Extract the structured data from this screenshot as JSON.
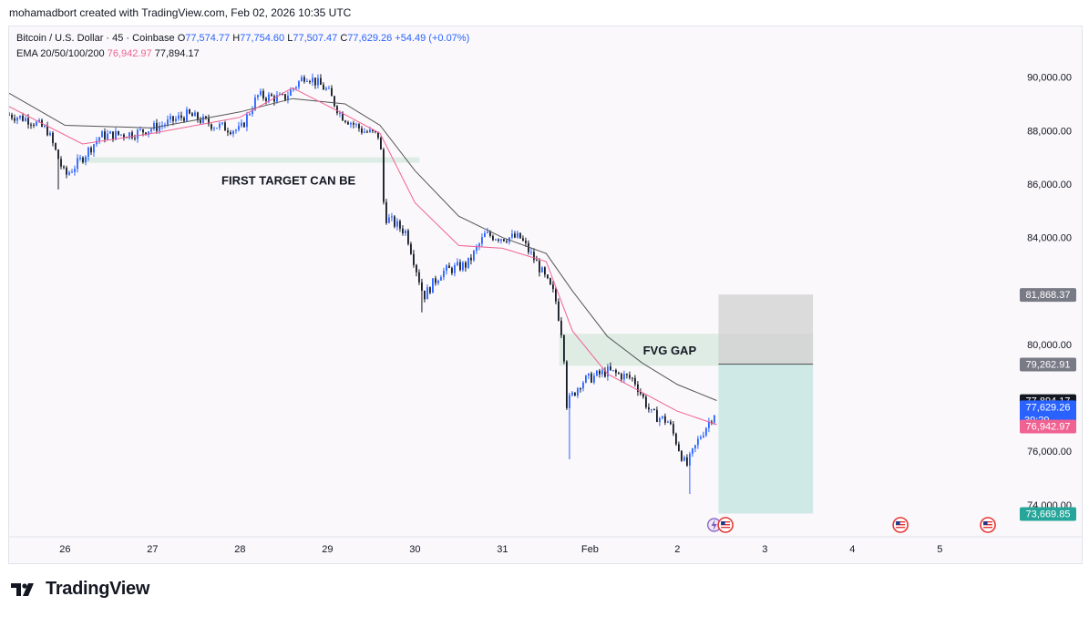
{
  "header": {
    "attribution": "mohamadbort created with TradingView.com, Feb 02, 2026 10:35 UTC"
  },
  "legend": {
    "symbol": "Bitcoin / U.S. Dollar · 45 · Coinbase",
    "open_label": "O",
    "open": "77,574.77",
    "high_label": "H",
    "high": "77,754.60",
    "low_label": "L",
    "low": "77,507.47",
    "close_label": "C",
    "close": "77,629.26",
    "change": "+54.49 (+0.07%)",
    "ema_label": "EMA 20/50/100/200",
    "ema20": "76,942.97",
    "ema50": "77,894.17"
  },
  "footer": {
    "brand": "TradingView"
  },
  "colors": {
    "up": "#2962ff",
    "down": "#131722",
    "ema20": "#f06292",
    "ema50": "#555555",
    "target_zone": "#b2dfdb",
    "stop_zone": "#cfcfcf",
    "fvg": "#d9eadf"
  },
  "icons": [
    "lightning-icon",
    "us-flag-event-icon"
  ],
  "chart_data": {
    "type": "candlestick",
    "ylim": [
      72800,
      91900
    ],
    "xlim": [
      25.36,
      5.82
    ],
    "y_ticks": [
      "90,000.00",
      "88,000.00",
      "86,000.00",
      "84,000.00",
      "80,000.00",
      "76,000.00",
      "74,000.00"
    ],
    "y_tick_values": [
      90000,
      88000,
      86000,
      84000,
      80000,
      76000,
      74000
    ],
    "x_ticks": [
      "26",
      "27",
      "28",
      "29",
      "30",
      "31",
      "Feb",
      "2",
      "3",
      "4",
      "5"
    ],
    "x_tick_days": [
      26,
      27,
      28,
      29,
      30,
      31,
      32,
      33,
      34,
      35,
      36
    ],
    "price_path": [
      [
        25.36,
        88600
      ],
      [
        25.6,
        88400
      ],
      [
        25.8,
        88000
      ],
      [
        26.0,
        86300
      ],
      [
        26.15,
        86800
      ],
      [
        26.4,
        87800
      ],
      [
        26.8,
        87900
      ],
      [
        27.1,
        88200
      ],
      [
        27.4,
        88600
      ],
      [
        27.7,
        88200
      ],
      [
        28.0,
        88000
      ],
      [
        28.2,
        89300
      ],
      [
        28.5,
        89200
      ],
      [
        28.75,
        90100
      ],
      [
        29.0,
        89500
      ],
      [
        29.15,
        88600
      ],
      [
        29.4,
        88000
      ],
      [
        29.6,
        87800
      ],
      [
        29.65,
        84800
      ],
      [
        29.9,
        84200
      ],
      [
        30.1,
        81800
      ],
      [
        30.3,
        82700
      ],
      [
        30.6,
        83000
      ],
      [
        30.8,
        84100
      ],
      [
        31.0,
        84000
      ],
      [
        31.2,
        84000
      ],
      [
        31.4,
        83000
      ],
      [
        31.6,
        81800
      ],
      [
        31.7,
        80000
      ],
      [
        31.72,
        77700
      ],
      [
        31.9,
        78600
      ],
      [
        32.2,
        79000
      ],
      [
        32.5,
        78700
      ],
      [
        32.7,
        77400
      ],
      [
        32.9,
        77100
      ],
      [
        33.1,
        75400
      ],
      [
        33.25,
        76500
      ],
      [
        33.45,
        77600
      ]
    ],
    "spike_lows": [
      [
        25.91,
        85800
      ],
      [
        30.08,
        81200
      ],
      [
        31.76,
        75700
      ],
      [
        33.15,
        74400
      ]
    ],
    "ema20": [
      [
        25.36,
        88900
      ],
      [
        26.2,
        87500
      ],
      [
        27.0,
        87900
      ],
      [
        28.0,
        88500
      ],
      [
        28.6,
        89600
      ],
      [
        29.2,
        88600
      ],
      [
        29.6,
        87900
      ],
      [
        30.0,
        85300
      ],
      [
        30.5,
        83700
      ],
      [
        31.0,
        83600
      ],
      [
        31.5,
        83100
      ],
      [
        31.8,
        80500
      ],
      [
        32.2,
        78900
      ],
      [
        32.6,
        78200
      ],
      [
        33.0,
        77500
      ],
      [
        33.45,
        77000
      ]
    ],
    "ema50": [
      [
        25.36,
        89400
      ],
      [
        26.0,
        88200
      ],
      [
        27.0,
        88100
      ],
      [
        28.0,
        88700
      ],
      [
        28.6,
        89200
      ],
      [
        29.2,
        89000
      ],
      [
        29.6,
        88200
      ],
      [
        30.0,
        86500
      ],
      [
        30.5,
        84800
      ],
      [
        31.0,
        84000
      ],
      [
        31.5,
        83400
      ],
      [
        31.8,
        82000
      ],
      [
        32.2,
        80300
      ],
      [
        32.6,
        79300
      ],
      [
        33.0,
        78500
      ],
      [
        33.45,
        77900
      ]
    ],
    "zones": [
      {
        "name": "first-target-zone",
        "label": "FIRST TARGET CAN BE",
        "x0": 26.15,
        "x1": 30.05,
        "y0": 86800,
        "y1": 87000,
        "color": "#d7eadf"
      },
      {
        "name": "fvg-zone",
        "label": "FVG GAP",
        "x0": 31.65,
        "x1": 34.55,
        "y0": 79200,
        "y1": 80400,
        "color": "#d9eadf"
      },
      {
        "name": "stop-zone",
        "label": "",
        "x0": 33.47,
        "x1": 34.55,
        "y0": 79262.91,
        "y1": 81868.37,
        "color": "#cfcfcf"
      },
      {
        "name": "target-zone",
        "label": "",
        "x0": 33.47,
        "x1": 34.55,
        "y0": 73669.85,
        "y1": 79262.91,
        "color": "#b2dfdb"
      }
    ],
    "price_labels": [
      {
        "name": "stop-price-label",
        "value": 81868.37,
        "text": "81,868.37",
        "bg": "#787b86",
        "fg": "#ffffff"
      },
      {
        "name": "entry-price-label",
        "value": 79262.91,
        "text": "79,262.91",
        "bg": "#787b86",
        "fg": "#ffffff"
      },
      {
        "name": "ema50-price-label",
        "value": 77894.17,
        "text": "77,894.17",
        "bg": "#131722",
        "fg": "#ffffff"
      },
      {
        "name": "last-price-label",
        "value": 77629.26,
        "text": "77,629.26",
        "sub": "39:29",
        "bg": "#2962ff",
        "fg": "#ffffff"
      },
      {
        "name": "ema20-price-label",
        "value": 76942.97,
        "text": "76,942.97",
        "bg": "#f06292",
        "fg": "#ffffff"
      },
      {
        "name": "target-price-label",
        "value": 73669.85,
        "text": "73,669.85",
        "bg": "#26a69a",
        "fg": "#ffffff"
      }
    ],
    "events": [
      33.42,
      33.55,
      35.55,
      36.55
    ]
  }
}
